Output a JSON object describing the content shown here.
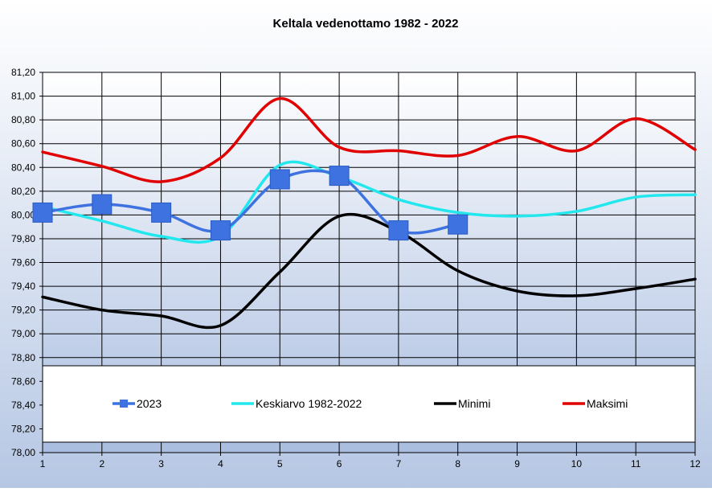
{
  "chart_data": {
    "type": "line",
    "title": "Keltala vedenottamo 1982 - 2022",
    "xlabel": "",
    "ylabel": "",
    "x": [
      1,
      2,
      3,
      4,
      5,
      6,
      7,
      8,
      9,
      10,
      11,
      12
    ],
    "x_tick_labels": [
      "1",
      "2",
      "3",
      "4",
      "5",
      "6",
      "7",
      "8",
      "9",
      "10",
      "11",
      "12"
    ],
    "ylim": [
      78.0,
      81.2
    ],
    "y_tick_labels": [
      "78,00",
      "78,20",
      "78,40",
      "78,60",
      "78,80",
      "79,00",
      "79,20",
      "79,40",
      "79,60",
      "79,80",
      "80,00",
      "80,20",
      "80,40",
      "80,60",
      "80,80",
      "81,00",
      "81,20"
    ],
    "grid": true,
    "legend_position": "inside-bottom",
    "series": [
      {
        "name": "2023",
        "color": "#3d72e0",
        "marker": "square",
        "values": [
          80.02,
          80.09,
          80.02,
          79.87,
          80.3,
          80.33,
          79.87,
          79.92,
          null,
          null,
          null,
          null
        ]
      },
      {
        "name": "Keskiarvo 1982-2022",
        "color": "#22e8ee",
        "marker": "none",
        "values": [
          80.07,
          79.95,
          79.82,
          79.82,
          80.42,
          80.32,
          80.13,
          80.02,
          79.99,
          80.03,
          80.15,
          80.17
        ]
      },
      {
        "name": "Minimi",
        "color": "#000000",
        "marker": "none",
        "values": [
          79.31,
          79.2,
          79.15,
          79.07,
          79.52,
          79.99,
          79.86,
          79.53,
          79.36,
          79.32,
          79.38,
          79.46
        ]
      },
      {
        "name": "Maksimi",
        "color": "#e00000",
        "marker": "none",
        "values": [
          80.53,
          80.41,
          80.28,
          80.48,
          80.98,
          80.57,
          80.54,
          80.5,
          80.66,
          80.54,
          80.81,
          80.55
        ]
      }
    ]
  }
}
